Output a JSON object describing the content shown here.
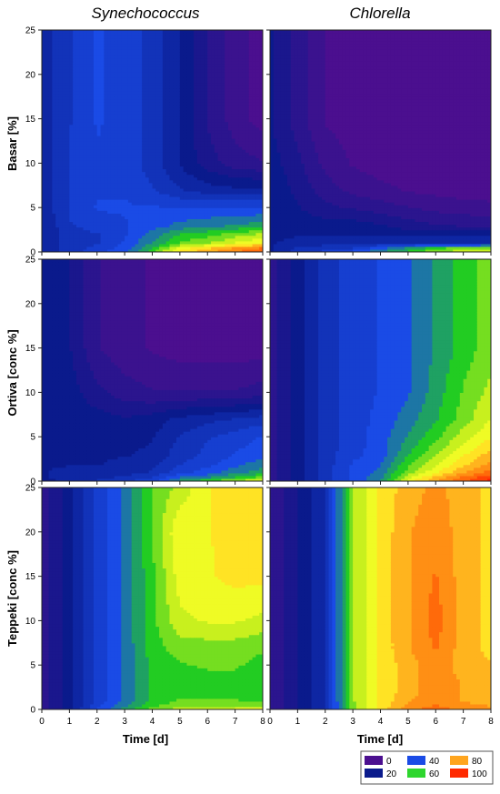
{
  "figure": {
    "columns": [
      "Synechococcus",
      "Chlorella"
    ],
    "rows": [
      "Basar [%]",
      "Ortiva [conc %]",
      "Teppeki [conc %]"
    ],
    "xlabel": "Time [d]"
  },
  "legend": {
    "levels": [
      {
        "label": "0",
        "color": "#4b0f8f"
      },
      {
        "label": "20",
        "color": "#0a1a8c"
      },
      {
        "label": "40",
        "color": "#1a4be6"
      },
      {
        "label": "60",
        "color": "#2ed62e"
      },
      {
        "label": "80",
        "color": "#ffa51e"
      },
      {
        "label": "100",
        "color": "#ff2a00"
      }
    ],
    "colorscale": [
      [
        0,
        "#4b0f8f"
      ],
      [
        20,
        "#0a1a8c"
      ],
      [
        40,
        "#1a4be6"
      ],
      [
        55,
        "#22cc22"
      ],
      [
        65,
        "#c8f01e"
      ],
      [
        72,
        "#ffff28"
      ],
      [
        80,
        "#ffb41e"
      ],
      [
        90,
        "#ff6a0a"
      ],
      [
        100,
        "#ff1a00"
      ]
    ],
    "step": 5
  },
  "chart_data": [
    {
      "type": "heatmap",
      "title": "Synechococcus",
      "ylabel": "Basar [%]",
      "xlabel": "",
      "xlim": [
        0,
        8
      ],
      "ylim": [
        0,
        25
      ],
      "x": [
        0,
        1,
        2,
        3,
        4,
        5,
        6,
        7,
        8
      ],
      "y": [
        0,
        0.5,
        1,
        2,
        3,
        5,
        7,
        10,
        15,
        20,
        25
      ],
      "z": [
        [
          22,
          30,
          35,
          42,
          55,
          75,
          82,
          88,
          92
        ],
        [
          22,
          30,
          34,
          40,
          52,
          70,
          76,
          83,
          88
        ],
        [
          22,
          30,
          32,
          38,
          48,
          58,
          62,
          68,
          72
        ],
        [
          22,
          30,
          32,
          37,
          45,
          53,
          56,
          60,
          64
        ],
        [
          22,
          32,
          35,
          37,
          40,
          44,
          46,
          48,
          50
        ],
        [
          24,
          33,
          38,
          38,
          38,
          38,
          38,
          38,
          38
        ],
        [
          24,
          33,
          37,
          37,
          33,
          28,
          25,
          24,
          24
        ],
        [
          25,
          33,
          37,
          36,
          30,
          22,
          15,
          10,
          8
        ],
        [
          25,
          32,
          38,
          36,
          30,
          22,
          12,
          5,
          0
        ],
        [
          25,
          32,
          38,
          36,
          30,
          22,
          12,
          5,
          0
        ],
        [
          24,
          32,
          38,
          36,
          30,
          22,
          12,
          5,
          0
        ]
      ]
    },
    {
      "type": "heatmap",
      "title": "Chlorella",
      "ylabel": "Basar [%]",
      "xlabel": "",
      "xlim": [
        0,
        8
      ],
      "ylim": [
        0,
        25
      ],
      "x": [
        0,
        1,
        2,
        3,
        4,
        5,
        6,
        7,
        8
      ],
      "y": [
        0,
        0.5,
        1,
        2,
        3,
        5,
        7,
        10,
        15,
        20,
        25
      ],
      "z": [
        [
          22,
          30,
          34,
          40,
          48,
          55,
          62,
          66,
          68
        ],
        [
          22,
          28,
          30,
          32,
          40,
          48,
          55,
          60,
          62
        ],
        [
          22,
          25,
          26,
          27,
          28,
          28,
          28,
          28,
          28
        ],
        [
          20,
          22,
          22,
          22,
          22,
          21,
          21,
          21,
          21
        ],
        [
          20,
          20,
          20,
          20,
          18,
          15,
          13,
          12,
          11
        ],
        [
          22,
          18,
          14,
          12,
          10,
          8,
          6,
          5,
          4
        ],
        [
          22,
          16,
          10,
          6,
          4,
          2,
          1,
          0,
          0
        ],
        [
          20,
          14,
          6,
          2,
          0,
          0,
          0,
          0,
          0
        ],
        [
          18,
          10,
          2,
          0,
          0,
          0,
          0,
          0,
          0
        ],
        [
          18,
          10,
          2,
          0,
          0,
          0,
          0,
          0,
          0
        ],
        [
          18,
          10,
          2,
          0,
          0,
          0,
          0,
          0,
          0
        ]
      ]
    },
    {
      "type": "heatmap",
      "title": "",
      "ylabel": "Ortiva [conc %]",
      "xlabel": "",
      "xlim": [
        0,
        8
      ],
      "ylim": [
        0,
        25
      ],
      "x": [
        0,
        1,
        2,
        3,
        4,
        5,
        6,
        7,
        8
      ],
      "y": [
        0,
        0.5,
        1,
        2,
        3,
        5,
        7,
        10,
        15,
        20,
        25
      ],
      "z": [
        [
          20,
          24,
          28,
          32,
          36,
          50,
          58,
          64,
          70
        ],
        [
          22,
          24,
          26,
          28,
          32,
          42,
          46,
          52,
          58
        ],
        [
          22,
          24,
          24,
          26,
          28,
          36,
          40,
          46,
          50
        ],
        [
          22,
          22,
          22,
          24,
          26,
          32,
          36,
          40,
          46
        ],
        [
          22,
          22,
          22,
          22,
          24,
          30,
          34,
          38,
          40
        ],
        [
          22,
          22,
          20,
          20,
          22,
          28,
          32,
          35,
          38
        ],
        [
          22,
          20,
          20,
          18,
          20,
          24,
          26,
          28,
          30
        ],
        [
          22,
          20,
          14,
          10,
          8,
          8,
          8,
          8,
          10
        ],
        [
          22,
          18,
          8,
          4,
          2,
          0,
          0,
          0,
          0
        ],
        [
          22,
          18,
          8,
          4,
          2,
          0,
          0,
          0,
          0
        ],
        [
          22,
          18,
          8,
          4,
          2,
          0,
          0,
          0,
          0
        ]
      ]
    },
    {
      "type": "heatmap",
      "title": "",
      "ylabel": "Ortiva [conc %]",
      "xlabel": "",
      "xlim": [
        0,
        8
      ],
      "ylim": [
        0,
        25
      ],
      "x": [
        0,
        1,
        2,
        3,
        4,
        5,
        6,
        7,
        8
      ],
      "y": [
        0,
        0.5,
        1,
        2,
        3,
        5,
        7,
        10,
        15,
        20,
        25
      ],
      "z": [
        [
          10,
          20,
          30,
          38,
          48,
          70,
          82,
          92,
          100
        ],
        [
          10,
          20,
          30,
          38,
          46,
          66,
          78,
          88,
          96
        ],
        [
          10,
          20,
          30,
          38,
          44,
          60,
          72,
          82,
          90
        ],
        [
          10,
          20,
          30,
          38,
          42,
          56,
          66,
          76,
          84
        ],
        [
          10,
          20,
          30,
          36,
          40,
          52,
          62,
          72,
          80
        ],
        [
          10,
          20,
          30,
          35,
          40,
          48,
          56,
          65,
          72
        ],
        [
          10,
          20,
          30,
          35,
          39,
          45,
          52,
          60,
          68
        ],
        [
          10,
          20,
          30,
          35,
          38,
          42,
          50,
          58,
          64
        ],
        [
          10,
          20,
          30,
          35,
          38,
          42,
          48,
          55,
          60
        ],
        [
          10,
          20,
          30,
          35,
          38,
          42,
          48,
          55,
          60
        ],
        [
          10,
          20,
          30,
          35,
          38,
          42,
          48,
          55,
          60
        ]
      ]
    },
    {
      "type": "heatmap",
      "title": "",
      "ylabel": "Teppeki [conc %]",
      "xlabel": "",
      "xlim": [
        0,
        8
      ],
      "ylim": [
        0,
        25
      ],
      "x": [
        0,
        1,
        2,
        3,
        4,
        5,
        6,
        7,
        8
      ],
      "y": [
        0,
        0.5,
        1,
        2,
        3,
        5,
        7,
        10,
        15,
        20,
        25
      ],
      "z": [
        [
          10,
          20,
          38,
          50,
          60,
          66,
          68,
          70,
          72
        ],
        [
          10,
          20,
          36,
          46,
          56,
          60,
          62,
          62,
          60
        ],
        [
          10,
          20,
          34,
          44,
          54,
          58,
          58,
          58,
          56
        ],
        [
          10,
          20,
          34,
          44,
          54,
          56,
          56,
          56,
          54
        ],
        [
          10,
          20,
          34,
          44,
          54,
          56,
          56,
          56,
          54
        ],
        [
          10,
          20,
          34,
          44,
          54,
          57,
          58,
          58,
          56
        ],
        [
          10,
          20,
          34,
          44,
          55,
          60,
          60,
          60,
          58
        ],
        [
          10,
          20,
          34,
          44,
          56,
          66,
          68,
          68,
          66
        ],
        [
          10,
          20,
          34,
          44,
          56,
          70,
          72,
          74,
          74
        ],
        [
          10,
          20,
          34,
          44,
          58,
          72,
          72,
          75,
          76
        ],
        [
          10,
          20,
          34,
          44,
          58,
          64,
          72,
          75,
          76
        ]
      ]
    },
    {
      "type": "heatmap",
      "title": "",
      "ylabel": "Teppeki [conc %]",
      "xlabel": "",
      "xlim": [
        0,
        8
      ],
      "ylim": [
        0,
        25
      ],
      "x": [
        0,
        1,
        2,
        3,
        4,
        5,
        6,
        7,
        8
      ],
      "y": [
        0,
        0.5,
        1,
        2,
        3,
        5,
        7,
        10,
        15,
        20,
        25
      ],
      "z": [
        [
          8,
          18,
          28,
          60,
          74,
          86,
          90,
          86,
          84
        ],
        [
          8,
          18,
          28,
          60,
          74,
          84,
          88,
          84,
          82
        ],
        [
          8,
          18,
          28,
          62,
          74,
          82,
          86,
          82,
          80
        ],
        [
          8,
          18,
          28,
          62,
          74,
          80,
          86,
          82,
          80
        ],
        [
          8,
          18,
          28,
          62,
          74,
          80,
          86,
          82,
          80
        ],
        [
          8,
          18,
          28,
          62,
          74,
          80,
          86,
          80,
          78
        ],
        [
          8,
          18,
          28,
          62,
          74,
          82,
          88,
          80,
          76
        ],
        [
          8,
          18,
          28,
          62,
          74,
          82,
          90,
          80,
          76
        ],
        [
          8,
          18,
          28,
          62,
          74,
          82,
          88,
          80,
          76
        ],
        [
          8,
          18,
          28,
          62,
          74,
          82,
          86,
          80,
          76
        ],
        [
          8,
          18,
          28,
          62,
          74,
          80,
          84,
          80,
          76
        ]
      ]
    }
  ]
}
